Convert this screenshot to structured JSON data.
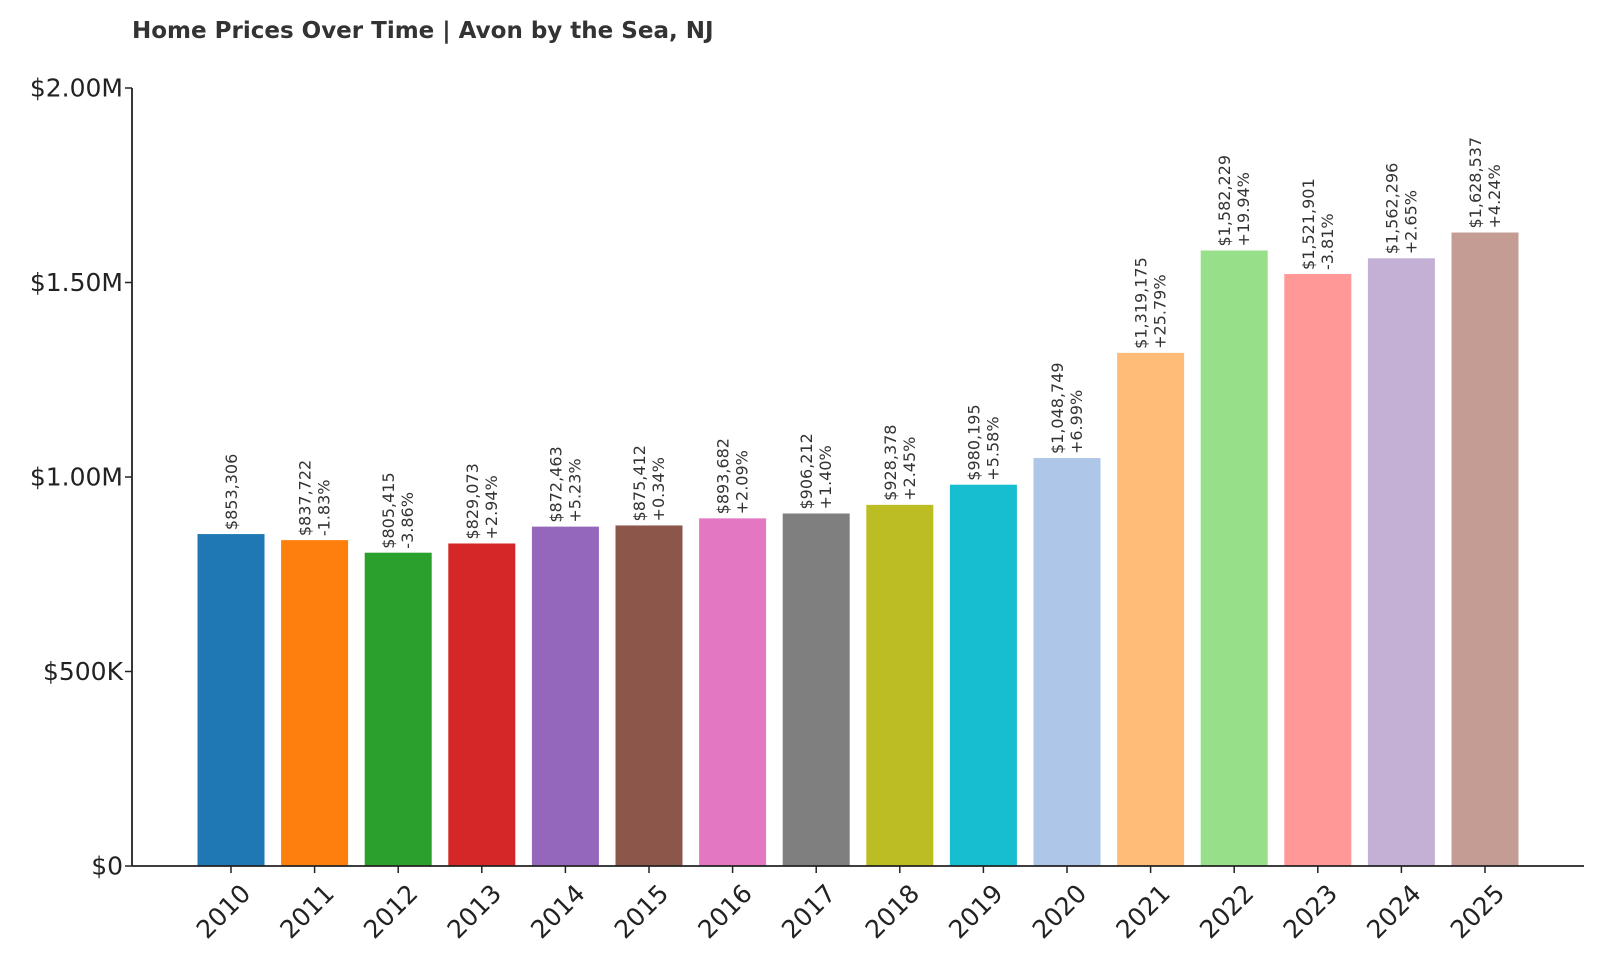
{
  "chart_data": {
    "type": "bar",
    "title": "Home Prices Over Time | Avon by the Sea, NJ",
    "xlabel": "",
    "ylabel": "",
    "ylim": [
      0,
      2000000
    ],
    "yticks": [
      {
        "value": 0,
        "label": "$0"
      },
      {
        "value": 500000,
        "label": "$500K"
      },
      {
        "value": 1000000,
        "label": "$1.00M"
      },
      {
        "value": 1500000,
        "label": "$1.50M"
      },
      {
        "value": 2000000,
        "label": "$2.00M"
      }
    ],
    "grid": false,
    "categories": [
      "2010",
      "2011",
      "2012",
      "2013",
      "2014",
      "2015",
      "2016",
      "2017",
      "2018",
      "2019",
      "2020",
      "2021",
      "2022",
      "2023",
      "2024",
      "2025"
    ],
    "values": [
      853306,
      837722,
      805415,
      829073,
      872463,
      875412,
      893682,
      906212,
      928378,
      980195,
      1048749,
      1319175,
      1582229,
      1521901,
      1562296,
      1628537
    ],
    "value_labels": [
      "$853,306",
      "$837,722",
      "$805,415",
      "$829,073",
      "$872,463",
      "$875,412",
      "$893,682",
      "$906,212",
      "$928,378",
      "$980,195",
      "$1,048,749",
      "$1,319,175",
      "$1,582,229",
      "$1,521,901",
      "$1,562,296",
      "$1,628,537"
    ],
    "change_labels": [
      "",
      "-1.83%",
      "-3.86%",
      "+2.94%",
      "+5.23%",
      "+0.34%",
      "+2.09%",
      "+1.40%",
      "+2.45%",
      "+5.58%",
      "+6.99%",
      "+25.79%",
      "+19.94%",
      "-3.81%",
      "+2.65%",
      "+4.24%"
    ],
    "colors": [
      "#1f77b4",
      "#ff7f0e",
      "#2ca02c",
      "#d62728",
      "#9467bd",
      "#8c564b",
      "#e377c2",
      "#7f7f7f",
      "#bcbd22",
      "#17becf",
      "#aec7e8",
      "#ffbb78",
      "#98df8a",
      "#ff9896",
      "#c5b0d5",
      "#c49c94"
    ]
  }
}
